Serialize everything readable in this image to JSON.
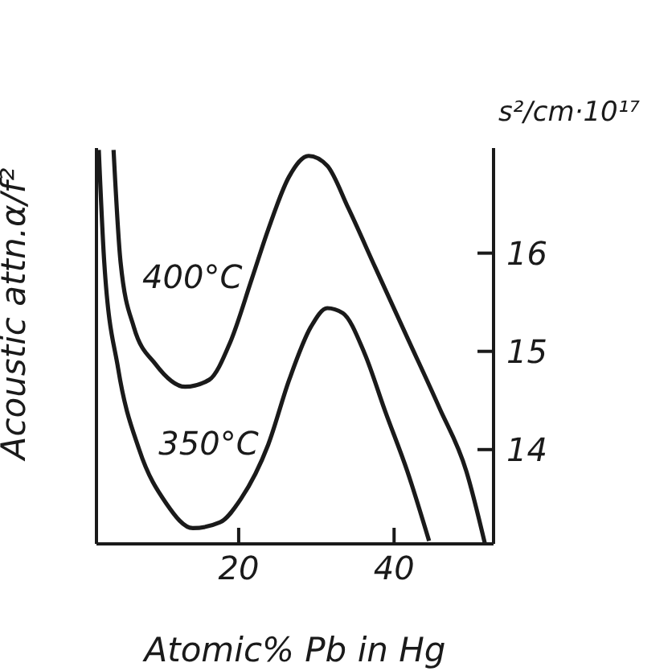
{
  "chart_data": {
    "type": "line",
    "xlabel": "Atomic% Pb in Hg",
    "ylabel": "Acoustic attn.α/f²",
    "y2label": "s²/cm·10¹⁷",
    "xlim": [
      1.7,
      52.8
    ],
    "xticks": [
      20,
      40
    ],
    "y2lim": [
      13.04,
      17.07
    ],
    "y2ticks": [
      14,
      15,
      16
    ],
    "grid": false,
    "legend": false,
    "marker": "none",
    "line_style": "solid",
    "series": [
      {
        "name": "400°C",
        "color": "#1a1a1a",
        "axis": "y2",
        "x": [
          3.9,
          4.8,
          6.5,
          9.3,
          13.1,
          16.2,
          18.9,
          21.7,
          23.8,
          26.5,
          29.0,
          31.4,
          34.1,
          37.6,
          41.7,
          45.8,
          49.3,
          51.7
        ],
        "values": [
          17.05,
          15.91,
          15.25,
          14.87,
          14.64,
          14.71,
          15.09,
          15.74,
          16.24,
          16.78,
          16.99,
          16.89,
          16.46,
          15.85,
          15.14,
          14.43,
          13.78,
          13.04
        ]
      },
      {
        "name": "350°C",
        "color": "#1a1a1a",
        "axis": "y2",
        "x": [
          2.0,
          2.7,
          4.5,
          7.2,
          10.7,
          14.1,
          17.6,
          20.3,
          23.8,
          26.5,
          29.3,
          31.4,
          33.4,
          36.2,
          38.9,
          41.7,
          44.5
        ],
        "values": [
          17.05,
          15.91,
          14.82,
          14.0,
          13.45,
          13.2,
          13.26,
          13.5,
          14.05,
          14.71,
          15.25,
          15.44,
          15.39,
          14.98,
          14.38,
          13.78,
          13.07
        ]
      }
    ]
  }
}
